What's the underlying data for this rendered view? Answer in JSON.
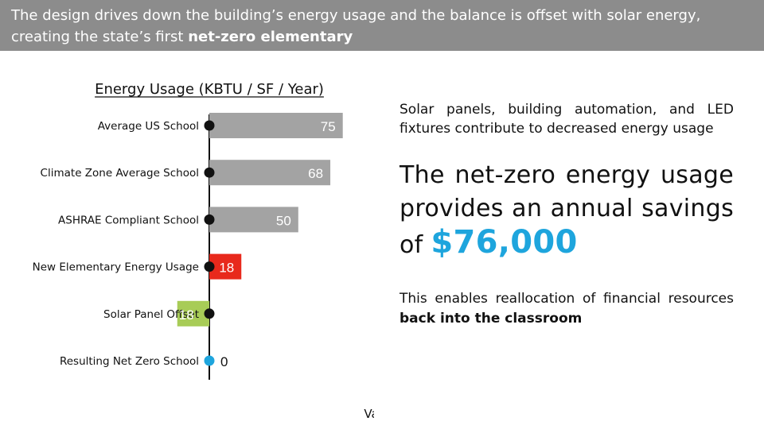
{
  "banner": {
    "text": "The design drives down the building’s energy usage and the balance is offset with solar energy, creating the state’s first ",
    "bold": "net-zero elementary"
  },
  "chart_data": {
    "type": "bar",
    "title": "Energy Usage (KBTU / SF / Year)",
    "xlabel": "Value",
    "ylabel": "",
    "categories": [
      "Average  US School",
      "Climate Zone Average School",
      "ASHRAE Compliant School",
      "New Elementary Energy Usage",
      "Solar Panel Offset",
      "Resulting Net Zero School"
    ],
    "values": [
      75,
      68,
      50,
      18,
      -18,
      0
    ],
    "value_labels": [
      "75",
      "68",
      "50",
      "18",
      "18",
      "0"
    ],
    "colors": [
      "#a3a3a3",
      "#a3a3a3",
      "#a3a3a3",
      "#e8291c",
      "#a8cc57",
      "#1ea5dd"
    ],
    "label_colors": [
      "#ffffff",
      "#ffffff",
      "#ffffff",
      "#ffffff",
      "#ffffff",
      "#111111"
    ],
    "xlim": [
      -25,
      75
    ],
    "grid": false,
    "orientation": "horizontal"
  },
  "right": {
    "intro": "Solar panels, building automation, and LED fixtures contribute to decreased energy usage",
    "headline": "The net-zero energy usage provides an annual savings of",
    "amount": "$76,000",
    "closing": "This enables reallocation of financial resources ",
    "closing_bold": "back into the classroom"
  }
}
